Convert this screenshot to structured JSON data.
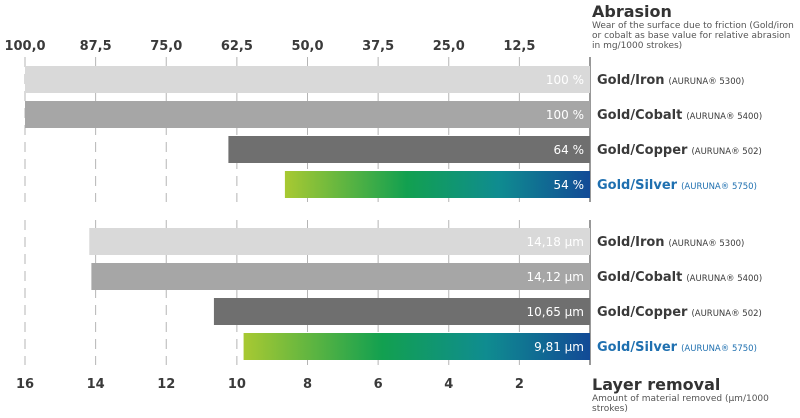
{
  "chart_data": [
    {
      "type": "bar",
      "orientation": "horizontal",
      "title": "Abrasion",
      "subtitle": "Wear of the surface due to friction (Gold/iron or cobalt as base value for relative abrasion in mg/1000 strokes)",
      "axis_position": "top",
      "xlim": [
        100,
        0
      ],
      "ticks": [
        "100,0",
        "87,5",
        "75,0",
        "62,5",
        "50,0",
        "37,5",
        "25,0",
        "12,5"
      ],
      "tick_values": [
        100,
        87.5,
        75,
        62.5,
        50,
        37.5,
        25,
        12.5
      ],
      "categories": [
        {
          "name": "Gold/Iron",
          "note": "(AURUNA® 5300)"
        },
        {
          "name": "Gold/Cobalt",
          "note": "(AURUNA® 5400)"
        },
        {
          "name": "Gold/Copper",
          "note": "(AURUNA® 502)"
        },
        {
          "name": "Gold/Silver",
          "note": "(AURUNA® 5750)"
        }
      ],
      "values": [
        100,
        100,
        64,
        54
      ],
      "value_labels": [
        "100 %",
        "100 %",
        "64 %",
        "54 %"
      ],
      "colors": [
        "#d9d9d9",
        "#a6a6a6",
        "#6f6f6f",
        "gradient"
      ]
    },
    {
      "type": "bar",
      "orientation": "horizontal",
      "title": "Layer removal",
      "subtitle": "Amount of material removed (µm/1000 strokes)",
      "axis_position": "bottom",
      "xlim": [
        16,
        0
      ],
      "ticks": [
        "16",
        "14",
        "12",
        "10",
        "8",
        "6",
        "4",
        "2"
      ],
      "tick_values": [
        16,
        14,
        12,
        10,
        8,
        6,
        4,
        2
      ],
      "categories": [
        {
          "name": "Gold/Iron",
          "note": "(AURUNA® 5300)"
        },
        {
          "name": "Gold/Cobalt",
          "note": "(AURUNA® 5400)"
        },
        {
          "name": "Gold/Copper",
          "note": "(AURUNA® 502)"
        },
        {
          "name": "Gold/Silver",
          "note": "(AURUNA® 5750)"
        }
      ],
      "values": [
        14.18,
        14.12,
        10.65,
        9.81
      ],
      "value_labels": [
        "14,18 µm",
        "14,12 µm",
        "10,65 µm",
        "9,81 µm"
      ],
      "colors": [
        "#d9d9d9",
        "#a6a6a6",
        "#6f6f6f",
        "gradient"
      ]
    }
  ],
  "colors": {
    "gradient": [
      "#a8c932",
      "#12a050",
      "#0f8c90",
      "#124a96"
    ],
    "highlight_text": "#1f70b0",
    "text": "#3a3a3a",
    "grid": "#b5b5b5"
  }
}
